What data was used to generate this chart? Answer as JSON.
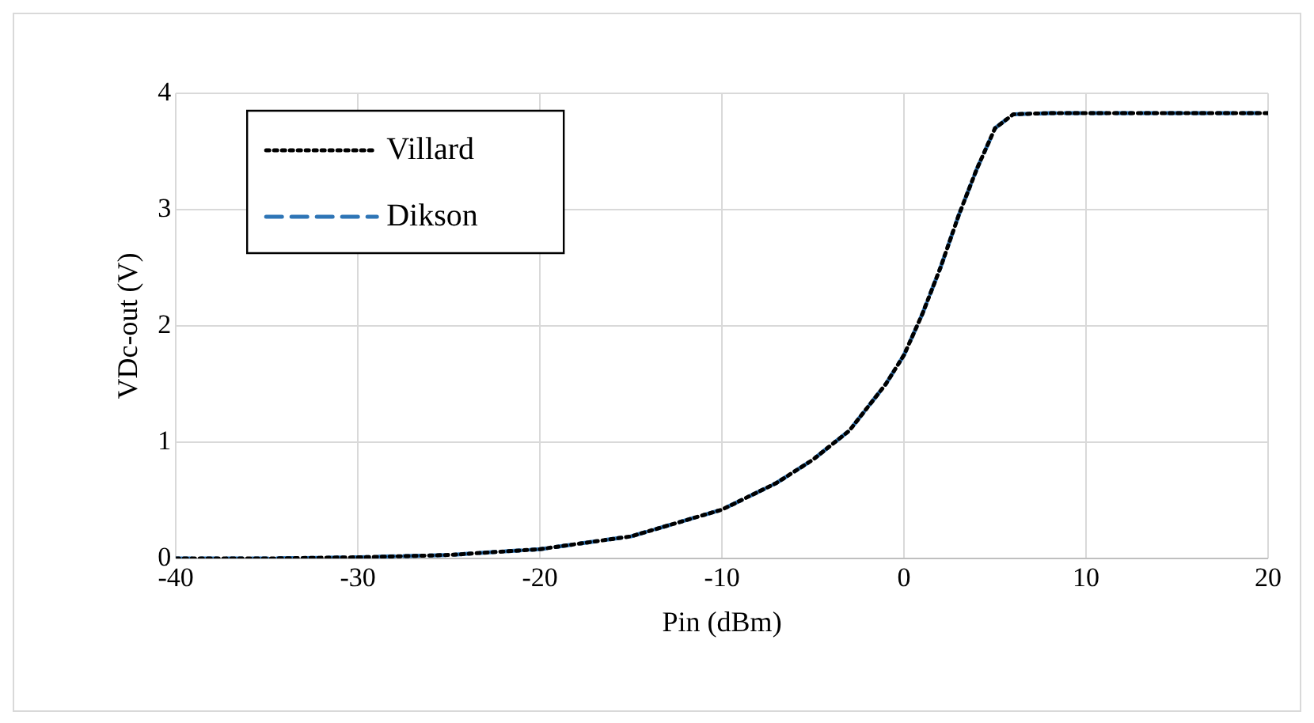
{
  "chart_data": {
    "type": "line",
    "xlabel": "Pin (dBm)",
    "ylabel": "VDc-out (V)",
    "xlim": [
      -40,
      20
    ],
    "xticks": [
      -40,
      -30,
      -20,
      -10,
      0,
      10,
      20
    ],
    "ylim": [
      0,
      4
    ],
    "yticks": [
      0,
      1,
      2,
      3,
      4
    ],
    "grid": true,
    "legend": "top left",
    "marker": "none",
    "series": [
      {
        "name": "Villard",
        "color": "#000000",
        "line_style": "dotted",
        "x": [
          -40,
          -35,
          -30,
          -25,
          -20,
          -15,
          -10,
          -7,
          -5,
          -3,
          -1,
          0,
          1,
          2,
          3,
          4,
          5,
          6,
          8,
          20
        ],
        "values": [
          0,
          0,
          0.01,
          0.03,
          0.08,
          0.19,
          0.42,
          0.65,
          0.85,
          1.1,
          1.5,
          1.75,
          2.1,
          2.5,
          2.95,
          3.35,
          3.7,
          3.82,
          3.83,
          3.83
        ]
      },
      {
        "name": "Dikson",
        "color": "#2e75b6",
        "line_style": "dashed",
        "x": [
          -40,
          -35,
          -30,
          -25,
          -20,
          -15,
          -10,
          -7,
          -5,
          -3,
          -1,
          0,
          1,
          2,
          3,
          4,
          5,
          6,
          8,
          20
        ],
        "values": [
          0,
          0,
          0.01,
          0.03,
          0.08,
          0.19,
          0.42,
          0.65,
          0.85,
          1.1,
          1.5,
          1.75,
          2.1,
          2.5,
          2.95,
          3.35,
          3.7,
          3.82,
          3.83,
          3.83
        ]
      }
    ]
  }
}
